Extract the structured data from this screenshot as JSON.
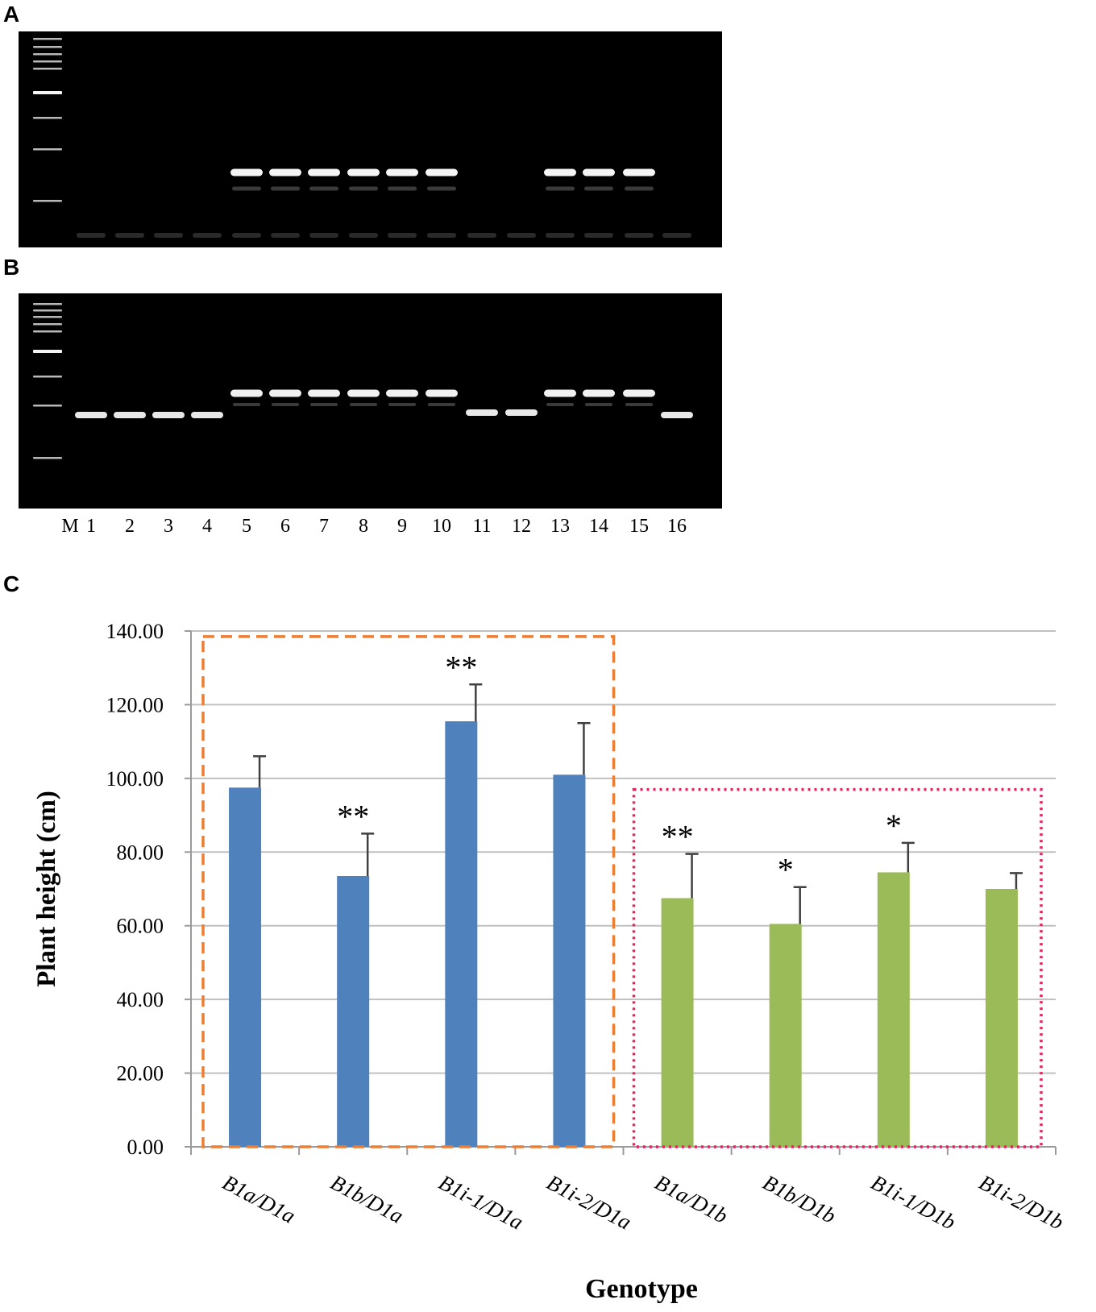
{
  "panels": {
    "a": "A",
    "b": "B",
    "c": "C"
  },
  "gel": {
    "lane_labels": [
      "M",
      "1",
      "2",
      "3",
      "4",
      "5",
      "6",
      "7",
      "8",
      "9",
      "10",
      "11",
      "12",
      "13",
      "14",
      "15",
      "16"
    ],
    "panel_a_bands_present": [
      false,
      false,
      false,
      false,
      true,
      true,
      true,
      true,
      true,
      true,
      false,
      false,
      true,
      true,
      true,
      false
    ],
    "panel_b_band_size": [
      "small",
      "small",
      "small",
      "small",
      "large",
      "large",
      "large",
      "large",
      "large",
      "large",
      "small",
      "small",
      "large",
      "large",
      "large",
      "small"
    ]
  },
  "chart_data": {
    "type": "bar",
    "title": "",
    "xlabel": "Genotype",
    "ylabel": "Plant height (cm)",
    "ylim": [
      0,
      140
    ],
    "yticks": [
      "0.00",
      "20.00",
      "40.00",
      "60.00",
      "80.00",
      "100.00",
      "120.00",
      "140.00"
    ],
    "grid": true,
    "categories": [
      "B1a/D1a",
      "B1b/D1a",
      "B1i-1/D1a",
      "B1i-2/D1a",
      "B1a/D1b",
      "B1b/D1b",
      "B1i-1/D1b",
      "B1i-2/D1b"
    ],
    "values": [
      97.5,
      73.5,
      115.5,
      101.0,
      67.5,
      60.5,
      74.5,
      70.0
    ],
    "errors": [
      8.5,
      11.5,
      10.0,
      14.0,
      12.0,
      10.0,
      8.0,
      4.3
    ],
    "colors": [
      "#4f81bd",
      "#4f81bd",
      "#4f81bd",
      "#4f81bd",
      "#9bbb59",
      "#9bbb59",
      "#9bbb59",
      "#9bbb59"
    ],
    "significance": [
      "",
      "**",
      "**",
      "",
      "**",
      "*",
      "*",
      ""
    ],
    "group_boxes": [
      {
        "from": 0,
        "to": 4,
        "color": "#ed7d31",
        "style": "dashed"
      },
      {
        "from": 4,
        "to": 7,
        "color": "#e0245e",
        "style": "dotted"
      }
    ]
  }
}
